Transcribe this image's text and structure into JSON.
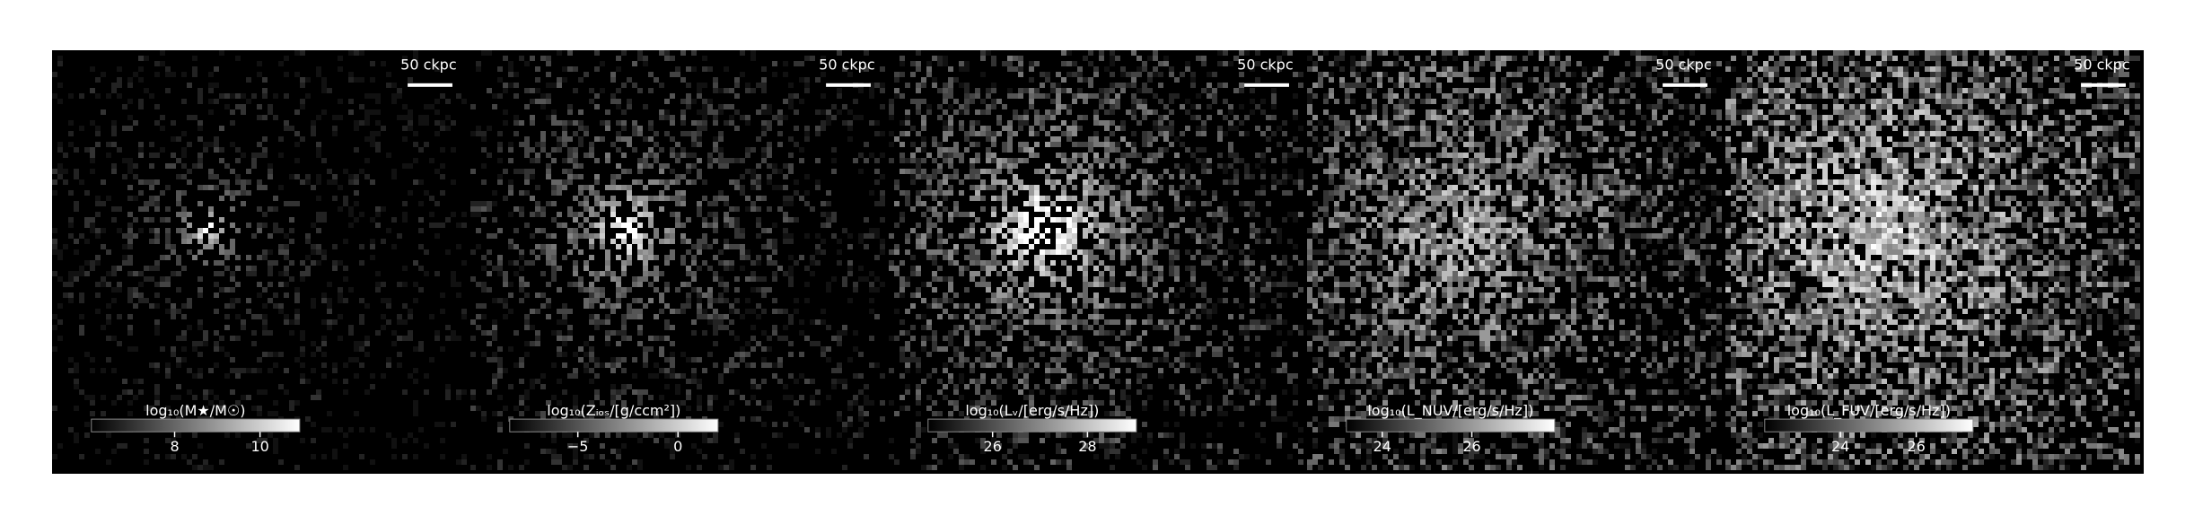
{
  "figure": {
    "panels": [
      {
        "scalebar": "50 ckpc",
        "colorbar": {
          "label": "log₁₀(M★/M☉)",
          "range": [
            6.05,
            10.93
          ],
          "ticks": [
            8,
            10
          ]
        }
      },
      {
        "scalebar": "50 ckpc",
        "colorbar": {
          "label": "log₁₀(Zᵢₒₛ/[g/ccm²])",
          "range": [
            -8.4,
            2.0
          ],
          "ticks": [
            {
              "value": -5,
              "label": "−5"
            },
            0
          ]
        }
      },
      {
        "scalebar": "50 ckpc",
        "colorbar": {
          "label": "log₁₀(Lᵥ/[erg/s/Hz])",
          "range": [
            24.64,
            29.03
          ],
          "ticks": [
            26,
            28
          ]
        }
      },
      {
        "scalebar": "50 ckpc",
        "colorbar": {
          "label": "log₁₀(L_NUV/[erg/s/Hz])",
          "range": [
            23.2,
            27.85
          ],
          "ticks": [
            24,
            26
          ]
        }
      },
      {
        "scalebar": "50 ckpc",
        "colorbar": {
          "label": "log₁₀(L_FUV/[erg/s/Hz])",
          "range": [
            22.0,
            27.5
          ],
          "ticks": [
            24,
            26
          ]
        }
      }
    ]
  }
}
